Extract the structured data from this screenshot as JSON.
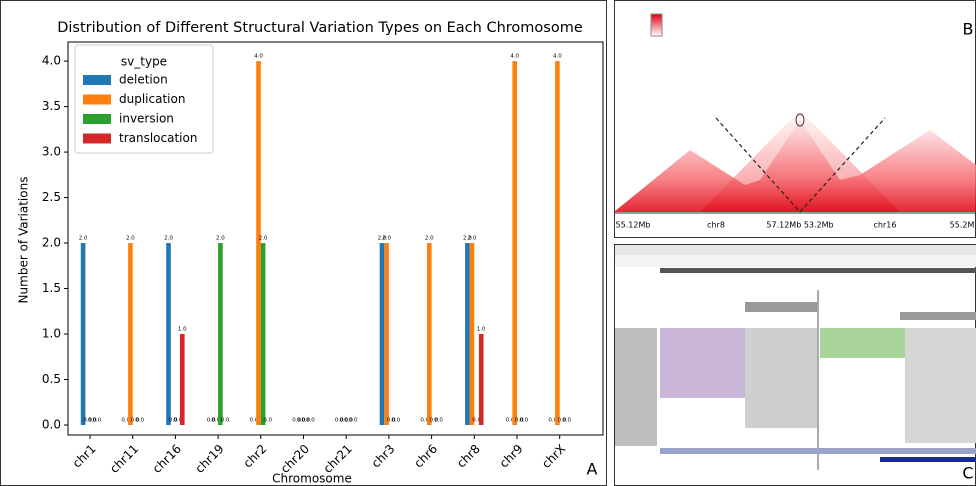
{
  "chart_data": {
    "type": "bar",
    "title": "Distribution of Different Structural Variation Types on Each Chromosome",
    "x_label": "Chromosome",
    "y_label": "Number of Variations",
    "categories": [
      "chr1",
      "chr11",
      "chr16",
      "chr19",
      "chr2",
      "chr20",
      "chr21",
      "chr3",
      "chr6",
      "chr8",
      "chr9",
      "chrX"
    ],
    "legend_title": "sv_type",
    "legend": "upper left",
    "series": [
      {
        "name": "deletion",
        "color": "#1f77b4",
        "values": [
          2,
          0,
          2,
          0,
          0,
          0,
          0,
          2,
          0,
          2,
          0,
          0
        ],
        "value_labels": [
          "2.0",
          "0.0",
          "2.0",
          "0.0",
          "0.0",
          "0.0",
          "0.0",
          "2.0",
          "0.0",
          "2.0",
          "0.0",
          "0.0"
        ]
      },
      {
        "name": "duplication",
        "color": "#ff7f0e",
        "values": [
          0,
          2,
          0,
          0,
          4,
          0,
          0,
          2,
          2,
          2,
          4,
          4
        ],
        "value_labels": [
          "0.0",
          "2.0",
          "0.0",
          "0.0",
          "4.0",
          "0.0",
          "0.0",
          "2.0",
          "2.0",
          "2.0",
          "4.0",
          "4.0"
        ]
      },
      {
        "name": "inversion",
        "color": "#2ca02c",
        "values": [
          0,
          0,
          0,
          2,
          2,
          0,
          0,
          0,
          0,
          0,
          0,
          0
        ],
        "value_labels": [
          "0.0",
          "0.0",
          "0.0",
          "2.0",
          "2.0",
          "0.0",
          "0.0",
          "0.0",
          "0.0",
          "0.0",
          "0.0",
          "0.0"
        ]
      },
      {
        "name": "translocation",
        "color": "#d62728",
        "values": [
          0,
          0,
          1,
          0,
          0,
          0,
          0,
          0,
          0,
          1,
          0,
          0
        ],
        "value_labels": [
          "0.0",
          "0.0",
          "1.0",
          "0.0",
          "0.0",
          "0.0",
          "0.0",
          "0.0",
          "0.0",
          "1.0",
          "0.0",
          "0.0"
        ]
      }
    ],
    "ylim": [
      -0.11,
      4.21
    ],
    "yticks": [
      {
        "value": 0,
        "label": "0.0"
      },
      0.5,
      {
        "value": 1,
        "label": "1.0"
      },
      1.5,
      {
        "value": 2,
        "label": "2.0"
      },
      2.5,
      {
        "value": 3,
        "label": "3.0"
      },
      3.5,
      {
        "value": 4,
        "label": "4.0"
      }
    ],
    "grid": false
  },
  "panels": {
    "a": "A",
    "b": {
      "label": "B",
      "x_labels": [
        "55.12Mb",
        "chr8",
        "57.12Mb 53.2Mb",
        "chr16",
        "55.2M"
      ]
    },
    "c": {
      "label": "C"
    }
  }
}
